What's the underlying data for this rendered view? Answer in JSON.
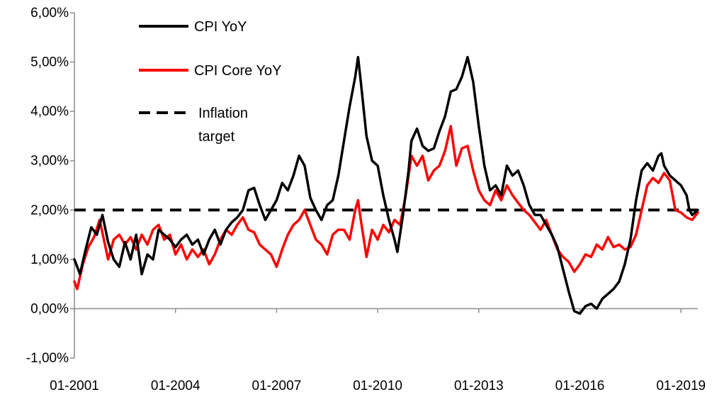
{
  "chart_data": {
    "type": "line",
    "title": "",
    "xlabel": "",
    "ylabel": "",
    "x_tick_labels": [
      "01-2001",
      "01-2004",
      "01-2007",
      "01-2010",
      "01-2013",
      "01-2016",
      "01-2019"
    ],
    "y_tick_labels": [
      "6,00%",
      "5,00%",
      "4,00%",
      "3,00%",
      "2,00%",
      "1,00%",
      "0,00%",
      "-1,00%"
    ],
    "y_ticks": [
      6,
      5,
      4,
      3,
      2,
      1,
      0,
      -1
    ],
    "ylim": [
      -1,
      6
    ],
    "xlim": [
      "2001-01",
      "2019-07"
    ],
    "grid": false,
    "legend_position": "top-left",
    "legend": {
      "cpi_label": "CPI YoY",
      "core_label": "CPI Core YoY",
      "target_label_line1": "Inflation",
      "target_label_line2": "target"
    },
    "series": [
      {
        "name": "CPI YoY",
        "color": "#000000",
        "style": "solid",
        "points": [
          [
            "2001-01",
            1.0
          ],
          [
            "2001-03",
            0.7
          ],
          [
            "2001-05",
            1.2
          ],
          [
            "2001-07",
            1.65
          ],
          [
            "2001-09",
            1.5
          ],
          [
            "2001-11",
            1.9
          ],
          [
            "2002-01",
            1.35
          ],
          [
            "2002-03",
            1.0
          ],
          [
            "2002-05",
            0.85
          ],
          [
            "2002-07",
            1.35
          ],
          [
            "2002-09",
            1.0
          ],
          [
            "2002-11",
            1.5
          ],
          [
            "2003-01",
            0.7
          ],
          [
            "2003-03",
            1.1
          ],
          [
            "2003-05",
            1.0
          ],
          [
            "2003-07",
            1.6
          ],
          [
            "2003-09",
            1.5
          ],
          [
            "2003-11",
            1.4
          ],
          [
            "2004-01",
            1.25
          ],
          [
            "2004-03",
            1.4
          ],
          [
            "2004-05",
            1.5
          ],
          [
            "2004-07",
            1.3
          ],
          [
            "2004-09",
            1.4
          ],
          [
            "2004-11",
            1.1
          ],
          [
            "2005-01",
            1.4
          ],
          [
            "2005-03",
            1.6
          ],
          [
            "2005-05",
            1.3
          ],
          [
            "2005-07",
            1.6
          ],
          [
            "2005-09",
            1.75
          ],
          [
            "2005-11",
            1.85
          ],
          [
            "2006-01",
            2.0
          ],
          [
            "2006-03",
            2.4
          ],
          [
            "2006-05",
            2.45
          ],
          [
            "2006-07",
            2.1
          ],
          [
            "2006-09",
            1.8
          ],
          [
            "2006-11",
            2.0
          ],
          [
            "2007-01",
            2.2
          ],
          [
            "2007-03",
            2.55
          ],
          [
            "2007-05",
            2.4
          ],
          [
            "2007-07",
            2.7
          ],
          [
            "2007-09",
            3.1
          ],
          [
            "2007-11",
            2.9
          ],
          [
            "2008-01",
            2.25
          ],
          [
            "2008-03",
            2.0
          ],
          [
            "2008-05",
            1.8
          ],
          [
            "2008-07",
            2.1
          ],
          [
            "2008-09",
            2.2
          ],
          [
            "2008-11",
            2.7
          ],
          [
            "2009-01",
            3.4
          ],
          [
            "2009-03",
            4.1
          ],
          [
            "2009-05",
            4.7
          ],
          [
            "2009-06",
            5.1
          ],
          [
            "2009-07",
            4.6
          ],
          [
            "2009-09",
            3.5
          ],
          [
            "2009-11",
            3.0
          ],
          [
            "2010-01",
            2.9
          ],
          [
            "2010-03",
            2.3
          ],
          [
            "2010-05",
            1.8
          ],
          [
            "2010-07",
            1.4
          ],
          [
            "2010-08",
            1.15
          ],
          [
            "2010-10",
            1.9
          ],
          [
            "2010-12",
            2.8
          ],
          [
            "2011-01",
            3.4
          ],
          [
            "2011-03",
            3.65
          ],
          [
            "2011-05",
            3.3
          ],
          [
            "2011-07",
            3.2
          ],
          [
            "2011-09",
            3.25
          ],
          [
            "2011-11",
            3.6
          ],
          [
            "2012-01",
            3.9
          ],
          [
            "2012-03",
            4.4
          ],
          [
            "2012-05",
            4.45
          ],
          [
            "2012-07",
            4.7
          ],
          [
            "2012-09",
            5.1
          ],
          [
            "2012-11",
            4.6
          ],
          [
            "2013-01",
            3.7
          ],
          [
            "2013-03",
            2.9
          ],
          [
            "2013-05",
            2.4
          ],
          [
            "2013-07",
            2.5
          ],
          [
            "2013-09",
            2.3
          ],
          [
            "2013-11",
            2.9
          ],
          [
            "2014-01",
            2.7
          ],
          [
            "2014-03",
            2.8
          ],
          [
            "2014-05",
            2.5
          ],
          [
            "2014-07",
            2.1
          ],
          [
            "2014-09",
            1.9
          ],
          [
            "2014-11",
            1.9
          ],
          [
            "2015-01",
            1.7
          ],
          [
            "2015-03",
            1.5
          ],
          [
            "2015-05",
            1.25
          ],
          [
            "2015-07",
            0.8
          ],
          [
            "2015-09",
            0.35
          ],
          [
            "2015-11",
            -0.05
          ],
          [
            "2016-01",
            -0.1
          ],
          [
            "2016-03",
            0.05
          ],
          [
            "2016-05",
            0.1
          ],
          [
            "2016-07",
            0.0
          ],
          [
            "2016-09",
            0.2
          ],
          [
            "2016-11",
            0.3
          ],
          [
            "2017-01",
            0.4
          ],
          [
            "2017-03",
            0.55
          ],
          [
            "2017-05",
            0.9
          ],
          [
            "2017-07",
            1.4
          ],
          [
            "2017-09",
            2.2
          ],
          [
            "2017-11",
            2.8
          ],
          [
            "2018-01",
            2.95
          ],
          [
            "2018-03",
            2.8
          ],
          [
            "2018-05",
            3.1
          ],
          [
            "2018-06",
            3.15
          ],
          [
            "2018-07",
            2.9
          ],
          [
            "2018-09",
            2.7
          ],
          [
            "2018-11",
            2.6
          ],
          [
            "2019-01",
            2.5
          ],
          [
            "2019-03",
            2.3
          ],
          [
            "2019-04",
            2.0
          ],
          [
            "2019-05",
            1.9
          ],
          [
            "2019-07",
            2.0
          ]
        ]
      },
      {
        "name": "CPI Core YoY",
        "color": "#ff0000",
        "style": "solid",
        "points": [
          [
            "2001-01",
            0.55
          ],
          [
            "2001-02",
            0.4
          ],
          [
            "2001-04",
            0.9
          ],
          [
            "2001-06",
            1.25
          ],
          [
            "2001-08",
            1.45
          ],
          [
            "2001-10",
            1.8
          ],
          [
            "2002-01",
            1.0
          ],
          [
            "2002-03",
            1.4
          ],
          [
            "2002-05",
            1.5
          ],
          [
            "2002-07",
            1.3
          ],
          [
            "2002-09",
            1.45
          ],
          [
            "2002-11",
            1.2
          ],
          [
            "2003-01",
            1.5
          ],
          [
            "2003-03",
            1.3
          ],
          [
            "2003-05",
            1.6
          ],
          [
            "2003-07",
            1.7
          ],
          [
            "2003-09",
            1.4
          ],
          [
            "2003-11",
            1.5
          ],
          [
            "2004-01",
            1.1
          ],
          [
            "2004-03",
            1.3
          ],
          [
            "2004-05",
            1.0
          ],
          [
            "2004-07",
            1.2
          ],
          [
            "2004-09",
            1.05
          ],
          [
            "2004-11",
            1.2
          ],
          [
            "2005-01",
            0.9
          ],
          [
            "2005-03",
            1.1
          ],
          [
            "2005-05",
            1.4
          ],
          [
            "2005-07",
            1.6
          ],
          [
            "2005-09",
            1.5
          ],
          [
            "2005-11",
            1.7
          ],
          [
            "2006-01",
            1.85
          ],
          [
            "2006-03",
            1.6
          ],
          [
            "2006-05",
            1.55
          ],
          [
            "2006-07",
            1.3
          ],
          [
            "2006-09",
            1.2
          ],
          [
            "2006-11",
            1.1
          ],
          [
            "2007-01",
            0.85
          ],
          [
            "2007-03",
            1.2
          ],
          [
            "2007-05",
            1.5
          ],
          [
            "2007-07",
            1.7
          ],
          [
            "2007-09",
            1.8
          ],
          [
            "2007-11",
            2.0
          ],
          [
            "2008-01",
            1.7
          ],
          [
            "2008-03",
            1.4
          ],
          [
            "2008-05",
            1.3
          ],
          [
            "2008-07",
            1.1
          ],
          [
            "2008-09",
            1.5
          ],
          [
            "2008-11",
            1.6
          ],
          [
            "2009-01",
            1.6
          ],
          [
            "2009-03",
            1.4
          ],
          [
            "2009-05",
            2.0
          ],
          [
            "2009-06",
            2.2
          ],
          [
            "2009-07",
            1.8
          ],
          [
            "2009-09",
            1.05
          ],
          [
            "2009-11",
            1.6
          ],
          [
            "2010-01",
            1.4
          ],
          [
            "2010-03",
            1.7
          ],
          [
            "2010-05",
            1.55
          ],
          [
            "2010-07",
            1.8
          ],
          [
            "2010-09",
            1.7
          ],
          [
            "2010-11",
            2.3
          ],
          [
            "2011-01",
            3.1
          ],
          [
            "2011-03",
            2.9
          ],
          [
            "2011-05",
            3.1
          ],
          [
            "2011-07",
            2.6
          ],
          [
            "2011-09",
            2.8
          ],
          [
            "2011-11",
            2.9
          ],
          [
            "2012-01",
            3.2
          ],
          [
            "2012-03",
            3.7
          ],
          [
            "2012-05",
            2.9
          ],
          [
            "2012-07",
            3.25
          ],
          [
            "2012-09",
            3.3
          ],
          [
            "2012-11",
            2.8
          ],
          [
            "2013-01",
            2.4
          ],
          [
            "2013-03",
            2.2
          ],
          [
            "2013-05",
            2.1
          ],
          [
            "2013-07",
            2.4
          ],
          [
            "2013-09",
            2.2
          ],
          [
            "2013-11",
            2.5
          ],
          [
            "2014-01",
            2.3
          ],
          [
            "2014-03",
            2.15
          ],
          [
            "2014-05",
            2.0
          ],
          [
            "2014-07",
            1.9
          ],
          [
            "2014-09",
            1.75
          ],
          [
            "2014-11",
            1.6
          ],
          [
            "2015-01",
            1.8
          ],
          [
            "2015-03",
            1.5
          ],
          [
            "2015-05",
            1.2
          ],
          [
            "2015-07",
            1.05
          ],
          [
            "2015-09",
            0.95
          ],
          [
            "2015-11",
            0.75
          ],
          [
            "2016-01",
            0.9
          ],
          [
            "2016-03",
            1.1
          ],
          [
            "2016-05",
            1.05
          ],
          [
            "2016-07",
            1.3
          ],
          [
            "2016-09",
            1.2
          ],
          [
            "2016-11",
            1.45
          ],
          [
            "2017-01",
            1.25
          ],
          [
            "2017-03",
            1.3
          ],
          [
            "2017-05",
            1.2
          ],
          [
            "2017-07",
            1.25
          ],
          [
            "2017-09",
            1.5
          ],
          [
            "2017-11",
            2.0
          ],
          [
            "2018-01",
            2.5
          ],
          [
            "2018-03",
            2.65
          ],
          [
            "2018-05",
            2.55
          ],
          [
            "2018-07",
            2.75
          ],
          [
            "2018-09",
            2.6
          ],
          [
            "2018-11",
            2.0
          ],
          [
            "2019-01",
            1.95
          ],
          [
            "2019-03",
            1.85
          ],
          [
            "2019-05",
            1.8
          ],
          [
            "2019-07",
            1.95
          ]
        ]
      },
      {
        "name": "Inflation target",
        "color": "#000000",
        "style": "dashed",
        "points": [
          [
            "2001-01",
            2.0
          ],
          [
            "2019-07",
            2.0
          ]
        ]
      }
    ]
  }
}
